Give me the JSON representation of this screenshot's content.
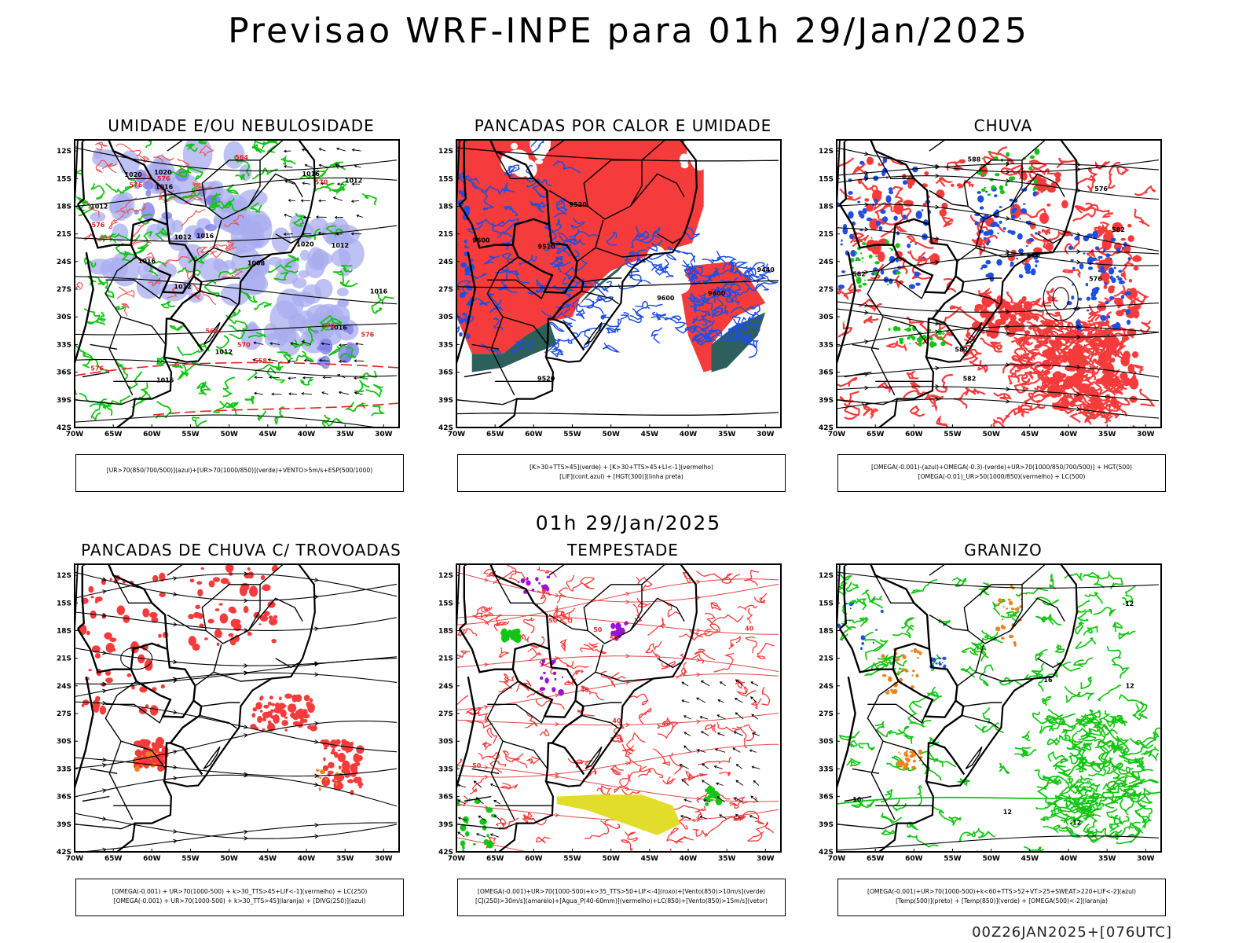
{
  "page": {
    "title": "Previsao WRF-INPE  para 01h 29/Jan/2025",
    "mid_date": "01h 29/Jan/2025",
    "footer": "00Z26JAN2025+[076UTC]"
  },
  "axes": {
    "lat_ticks": [
      "12S",
      "15S",
      "18S",
      "21S",
      "24S",
      "27S",
      "30S",
      "33S",
      "36S",
      "39S",
      "42S"
    ],
    "lon_ticks": [
      "70W",
      "65W",
      "60W",
      "55W",
      "50W",
      "45W",
      "40W",
      "35W",
      "30W"
    ]
  },
  "colors": {
    "red": "#f53b3b",
    "green": "#12c512",
    "blue": "#1f4fe0",
    "lavender": "#a8acef",
    "teal": "#2d5f5c",
    "yellow": "#e2dc2a",
    "orange": "#f0821e",
    "purple": "#9b11d6",
    "darkred_line": "#e23030"
  },
  "chart_data": [
    {
      "type": "map",
      "id": "umidade",
      "title": "UMIDADE E/OU NEBULOSIDADE",
      "legend": [
        "[UR>70(850/700/500)](azul)+[UR>70(1000/850)](verde)+VENTO>5m/s+ESP(500/1000)"
      ],
      "isobar_labels": [
        "1012",
        "1012",
        "1012",
        "1012",
        "1008",
        "1012",
        "1016",
        "1016",
        "1016",
        "1016",
        "1020",
        "1016",
        "1016",
        "1012",
        "1020",
        "1020",
        "1016"
      ],
      "thickness_labels": [
        "576",
        "576",
        "576",
        "576",
        "576",
        "570",
        "570",
        "570",
        "564",
        "564",
        "558"
      ]
    },
    {
      "type": "map",
      "id": "pancadas_calor",
      "title": "PANCADAS POR CALOR E UMIDADE",
      "legend": [
        "[K>30+TTS>45](verde)  +  [K>30+TTS>45+LI<-1](vermelho)",
        "[LIF](cont.azul)  +  [HGT(300)](linha preta)"
      ],
      "height_labels": [
        "9600",
        "9600",
        "9600",
        "9520",
        "9520",
        "9520",
        "9440"
      ]
    },
    {
      "type": "map",
      "id": "chuva",
      "title": "CHUVA",
      "legend": [
        "[OMEGA(-0.001)-(azul)+OMEGA(-0.3)-(verde)+UR>70(1000/850/700/500)]  +  HGT(500)",
        "[OMEGA(-0.01)_UR>50(1000/850)(vermelho)  +  LC(500)"
      ],
      "height_labels": [
        "582",
        "588",
        "582",
        "582",
        "582",
        "576",
        "576",
        "576"
      ]
    },
    {
      "type": "map",
      "id": "pancadas_trovoadas",
      "title": "PANCADAS DE CHUVA C/ TROVOADAS",
      "legend": [
        "[OMEGA(-0.001)  +  UR>70(1000-500)  +  k>30_TTS>45+LIF<-1](vermelho)  +  LC(250)",
        "[OMEGA(-0.001)  +  UR>70(1000-500)  +  k>30_TTS>45](laranja)  +  [DIVG(250)](azul)"
      ]
    },
    {
      "type": "map",
      "id": "tempestade",
      "title": "TEMPESTADE",
      "legend": [
        "[OMEGA(-0.001)+UR>70(1000-500)+k>35_TTS>50+LIF<-4](roxo)+[Vento(850)>10m/s](verde)",
        "[CJ(250)>30m/s](amarelo)+[Agua_P(40-60mm)](vermelho)+LC(850)+[Vento(850)>15m/s](vetor)"
      ],
      "pw_labels": [
        "50",
        "50",
        "50",
        "50",
        "50",
        "40",
        "40",
        "40",
        "40"
      ]
    },
    {
      "type": "map",
      "id": "granizo",
      "title": "GRANIZO",
      "legend": [
        "[OMEGA(-0.001)+UR>70(1000-500)+k<60+TTS>52+VT>25+SWEAT>220+LIF<-2](azul)",
        "[Temp(500)](preto)  +  [Temp(850)](verde)  +  [OMEGA(500)<-2](laranja)"
      ],
      "temp_labels": [
        "16",
        "16",
        "12",
        "12",
        "-12",
        "-12"
      ]
    }
  ]
}
